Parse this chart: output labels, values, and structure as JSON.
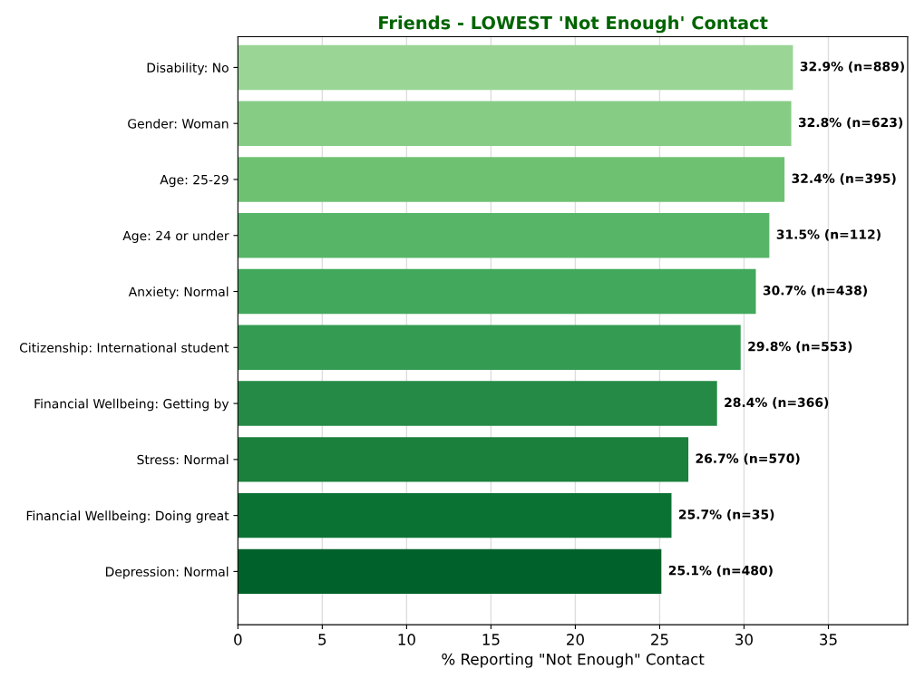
{
  "chart_data": {
    "type": "bar",
    "orientation": "horizontal",
    "title": "Friends - LOWEST 'Not Enough' Contact",
    "xlabel": "% Reporting \"Not Enough\" Contact",
    "categories": [
      "Disability: No",
      "Gender: Woman",
      "Age: 25-29",
      "Age: 24 or under",
      "Anxiety: Normal",
      "Citizenship: International student",
      "Financial Wellbeing: Getting by",
      "Stress: Normal",
      "Financial Wellbeing: Doing great",
      "Depression: Normal"
    ],
    "values": [
      32.9,
      32.8,
      32.4,
      31.5,
      30.7,
      29.8,
      28.4,
      26.7,
      25.7,
      25.1
    ],
    "colors": [
      "#9ad596",
      "#86cc85",
      "#6fc172",
      "#57b567",
      "#41a85c",
      "#339c52",
      "#248a45",
      "#1a803c",
      "#0a7233",
      "#00622a"
    ],
    "value_labels": [
      "32.9% (n=889)",
      "32.8% (n=623)",
      "32.4% (n=395)",
      "31.5% (n=112)",
      "30.7% (n=438)",
      "29.8% (n=553)",
      "28.4% (n=366)",
      "26.7% (n=570)",
      "25.7% (n=35)",
      "25.1% (n=480)"
    ],
    "xlim": [
      0,
      39.7
    ],
    "xticks": [
      0,
      5,
      10,
      15,
      20,
      25,
      30,
      35
    ],
    "grid": "x"
  }
}
